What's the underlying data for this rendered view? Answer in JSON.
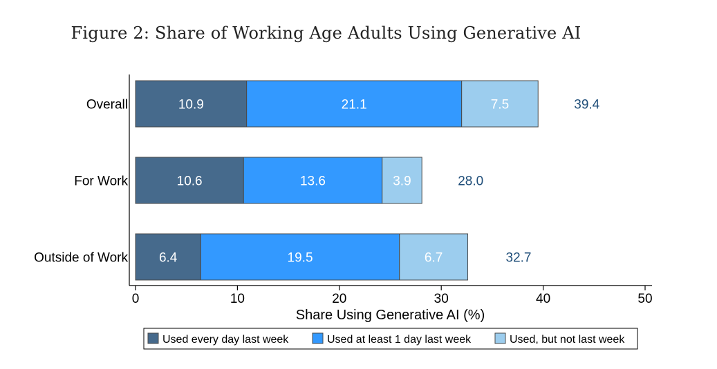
{
  "title": "Figure 2: Share of Working Age Adults Using Generative AI",
  "chart_data": {
    "type": "bar",
    "orientation": "horizontal",
    "stacked": true,
    "title": "Figure 2: Share of Working Age Adults Using Generative AI",
    "xlabel": "Share Using Generative AI (%)",
    "ylabel": "",
    "xlim": [
      0,
      50
    ],
    "xticks": [
      0,
      10,
      20,
      30,
      40,
      50
    ],
    "categories": [
      "Overall",
      "For Work",
      "Outside of Work"
    ],
    "series": [
      {
        "name": "Used every day last week",
        "color": "#466a8c",
        "values": [
          10.9,
          10.6,
          6.4
        ],
        "labels": [
          "10.9",
          "10.6",
          "6.4"
        ]
      },
      {
        "name": "Used at least 1 day last week",
        "color": "#3399ff",
        "values": [
          21.1,
          13.6,
          19.5
        ],
        "labels": [
          "21.1",
          "13.6",
          "19.5"
        ]
      },
      {
        "name": "Used, but not last week",
        "color": "#9ccdee",
        "values": [
          7.5,
          3.9,
          6.7
        ],
        "labels": [
          "7.5",
          "3.9",
          "6.7"
        ]
      }
    ],
    "totals": [
      39.4,
      28.0,
      32.7
    ],
    "total_labels": [
      "39.4",
      "28.0",
      "32.7"
    ],
    "grid": false,
    "legend_position": "bottom"
  }
}
